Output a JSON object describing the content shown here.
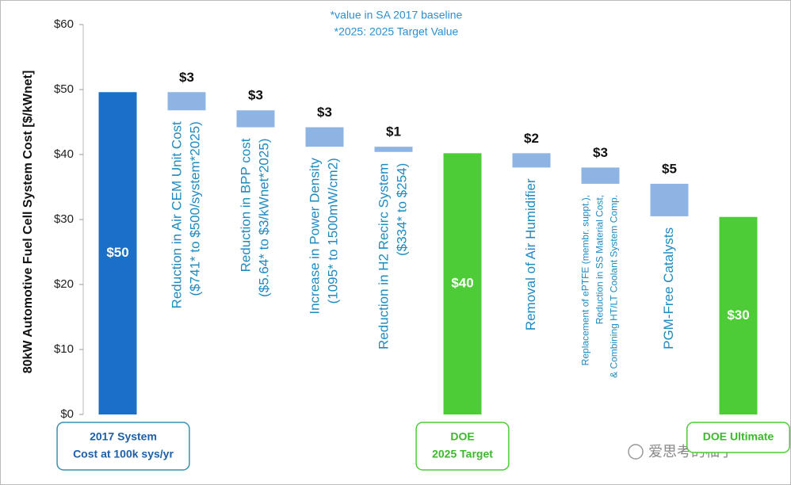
{
  "chart_data": {
    "type": "waterfall",
    "notes": [
      "*value in SA 2017 baseline",
      "*2025: 2025 Target Value"
    ],
    "y_label": "80kW Automotive Fuel Cell System Cost [$/kWnet]",
    "categories": [
      [
        "2017 System",
        "Cost at 100k sys/yr"
      ],
      [
        "Reduction in Air CEM Unit Cost",
        "($741* to  $500/system*2025)"
      ],
      [
        "Reduction in BPP cost",
        "($5.64* to $3/kWnet*2025)"
      ],
      [
        "Increase in Power Density",
        "(1095* to 1500mW/cm2)"
      ],
      [
        "Reduction in H2 Recirc System",
        "($334* to $254)"
      ],
      [
        "DOE",
        "2025 Target"
      ],
      [
        "Removal of Air Humidifier"
      ],
      [
        "Replacement of ePTFE (membr. suppt.),",
        "Reduction in SS Material Cost,",
        "& Combining HT/LT Coolant System Comp."
      ],
      [
        "PGM-Free Catalysts"
      ],
      [
        "DOE Ultimate"
      ]
    ],
    "kinds": [
      "total",
      "decrease",
      "decrease",
      "decrease",
      "decrease",
      "total",
      "decrease",
      "decrease",
      "decrease",
      "total"
    ],
    "values": [
      49.6,
      2.8,
      2.6,
      3.0,
      0.8,
      40.2,
      2.2,
      2.5,
      5.0,
      30.4
    ],
    "value_labels": [
      "$50",
      "$3",
      "$3",
      "$3",
      "$1",
      "$40",
      "$2",
      "$3",
      "$5",
      "$30"
    ],
    "colors": [
      "#1a6fc6",
      "#8db4e2",
      "#8db4e2",
      "#8db4e2",
      "#8db4e2",
      "#4dcc37",
      "#8db4e2",
      "#8db4e2",
      "#8db4e2",
      "#4dcc37"
    ],
    "ylim": [
      0,
      60
    ],
    "yticks": [
      {
        "value": 0,
        "label": "$0"
      },
      {
        "value": 10,
        "label": "$10"
      },
      {
        "value": 20,
        "label": "$20"
      },
      {
        "value": 30,
        "label": "$30"
      },
      {
        "value": 40,
        "label": "$40"
      },
      {
        "value": 50,
        "label": "$50"
      },
      {
        "value": 60,
        "label": "$60"
      }
    ],
    "watermark": "爱思考的柚子"
  }
}
